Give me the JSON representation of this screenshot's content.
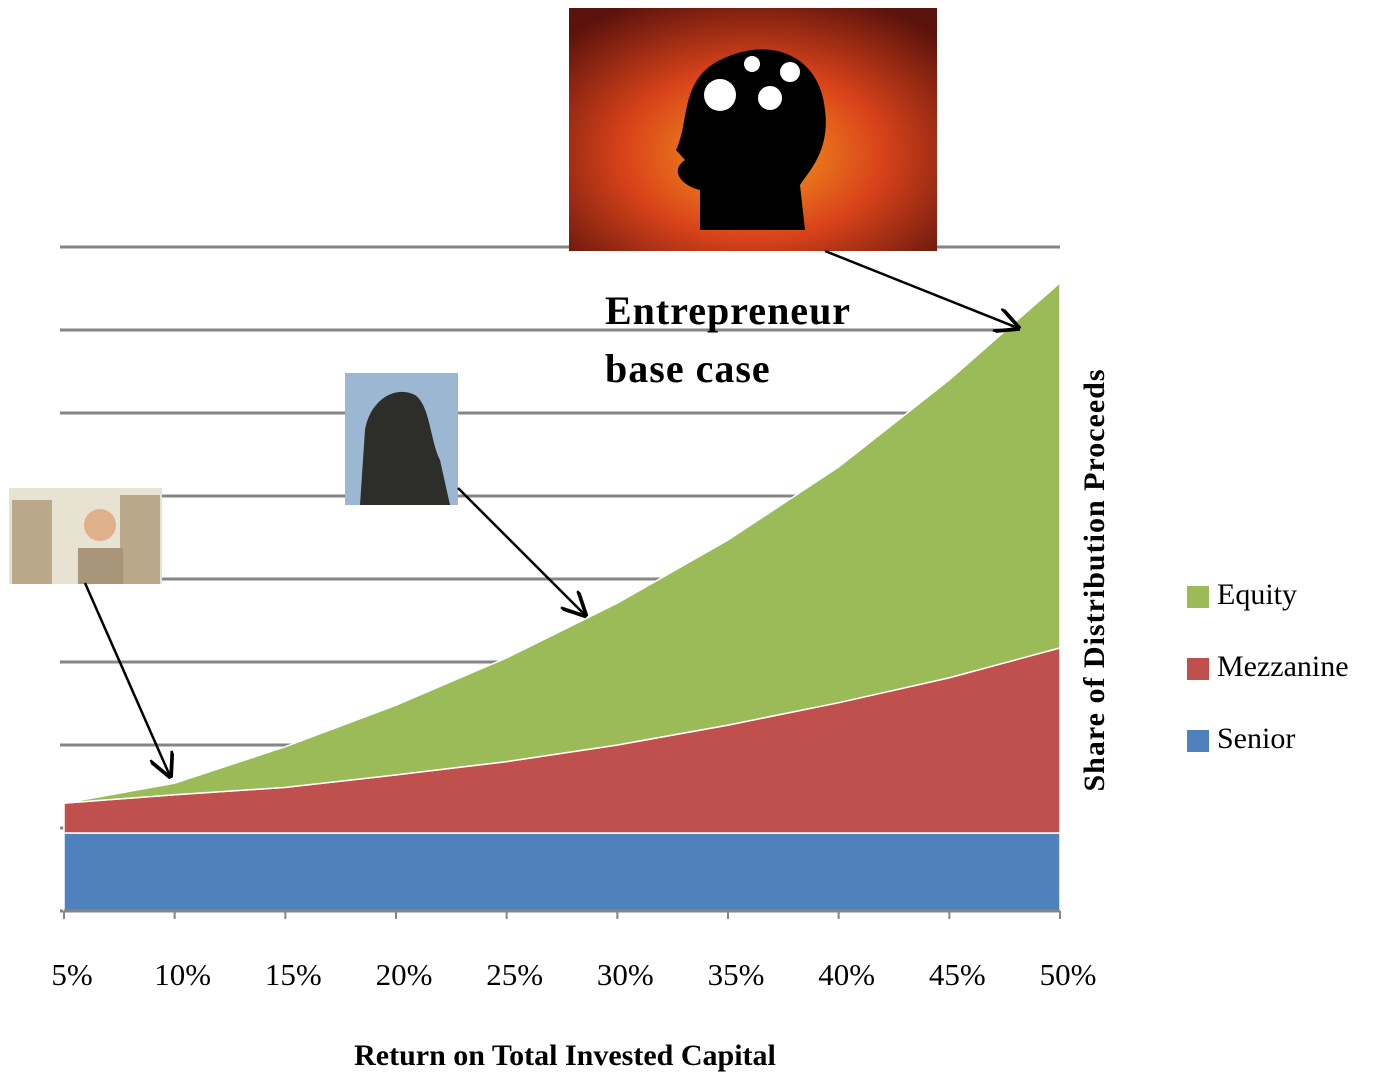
{
  "chart_data": {
    "type": "stacked_area",
    "annotation": "Entrepreneur base case",
    "x_label": "Return on Total Invested Capital",
    "y_label": "Share of Distribution Proceeds",
    "categories": [
      "5%",
      "10%",
      "15%",
      "20%",
      "25%",
      "30%",
      "35%",
      "40%",
      "45%",
      "50%"
    ],
    "series": [
      {
        "name": "Senior",
        "color": "#4f81bd",
        "values": [
          0.94,
          0.94,
          0.94,
          0.94,
          0.94,
          0.94,
          0.94,
          0.94,
          0.94,
          0.94
        ]
      },
      {
        "name": "Mezzanine",
        "color": "#c0504d",
        "values": [
          0.36,
          0.46,
          0.55,
          0.7,
          0.86,
          1.06,
          1.3,
          1.57,
          1.87,
          2.23
        ]
      },
      {
        "name": "Equity",
        "color": "#9bbb59",
        "values": [
          0,
          0.14,
          0.49,
          0.84,
          1.25,
          1.71,
          2.23,
          2.84,
          3.59,
          4.4
        ]
      }
    ],
    "ylim": [
      0,
      8
    ],
    "yticks": [
      0,
      1,
      2,
      3,
      4,
      5,
      6,
      7,
      8
    ],
    "grid": true,
    "legend": "right"
  }
}
